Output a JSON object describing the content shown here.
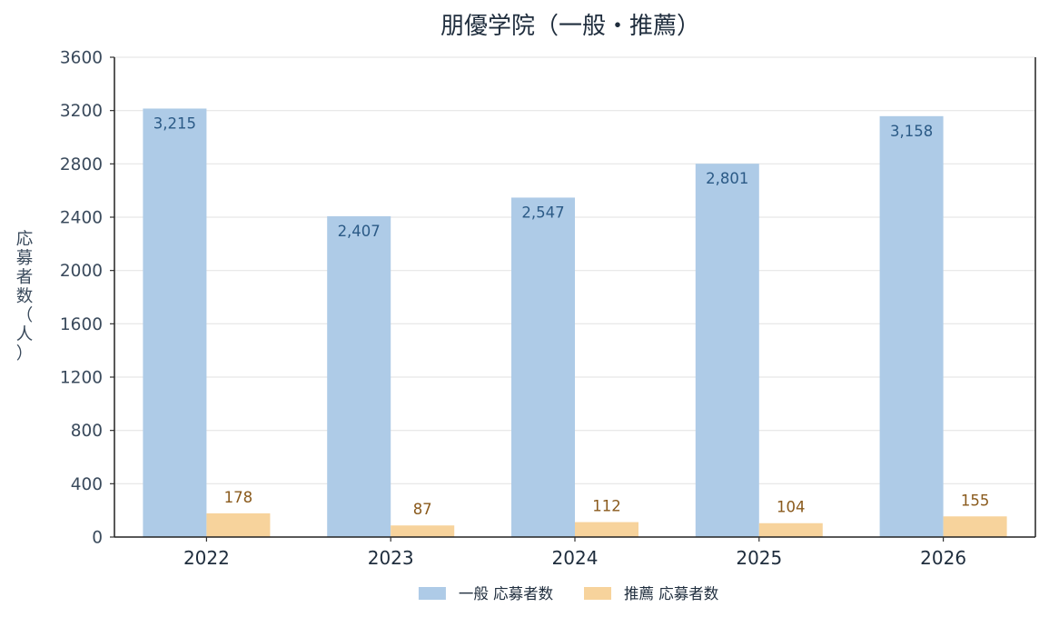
{
  "chart_data": {
    "type": "bar",
    "title": "朋優学院（一般・推薦）",
    "xlabel": "",
    "ylabel": "応募者数（人）",
    "categories": [
      "2022",
      "2023",
      "2024",
      "2025",
      "2026"
    ],
    "ylim": [
      0,
      3600
    ],
    "yticks": [
      0,
      400,
      800,
      1200,
      1600,
      2000,
      2400,
      2800,
      3200,
      3600
    ],
    "grid": true,
    "legend_position": "bottom-center",
    "series": [
      {
        "name": "一般 応募者数",
        "values": [
          3215,
          2407,
          2547,
          2801,
          3158
        ],
        "labels": [
          "3,215",
          "2,407",
          "2,547",
          "2,801",
          "3,158"
        ],
        "color": "#aecbe7",
        "label_color": "#2b5a86"
      },
      {
        "name": "推薦 応募者数",
        "values": [
          178,
          87,
          112,
          104,
          155
        ],
        "labels": [
          "178",
          "87",
          "112",
          "104",
          "155"
        ],
        "color": "#f7d39c",
        "label_color": "#8a5a1c"
      }
    ]
  }
}
